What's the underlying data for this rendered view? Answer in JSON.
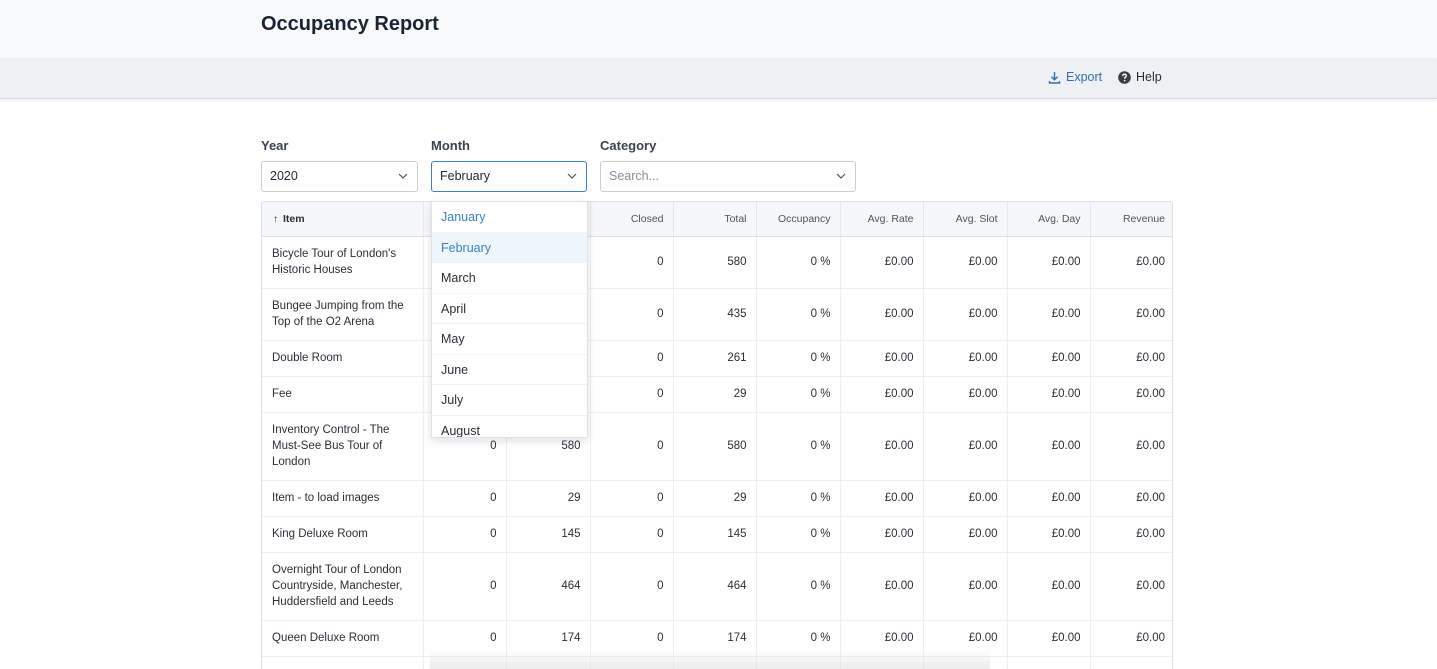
{
  "page": {
    "title": "Occupancy Report"
  },
  "toolbar": {
    "export_label": "Export",
    "help_label": "Help"
  },
  "filters": {
    "year": {
      "label": "Year",
      "value": "2020"
    },
    "month": {
      "label": "Month",
      "value": "February"
    },
    "category": {
      "label": "Category",
      "placeholder": "Search..."
    }
  },
  "month_dropdown": {
    "options": [
      "January",
      "February",
      "March",
      "April",
      "May",
      "June",
      "July",
      "August"
    ],
    "highlighted": "January",
    "selected": "February"
  },
  "table": {
    "headers": [
      "Item",
      "",
      "",
      "Closed",
      "Total",
      "Occupancy",
      "Avg. Rate",
      "Avg. Slot",
      "Avg. Day",
      "Revenue"
    ],
    "rows": [
      {
        "item": "Bicycle Tour of London's Historic Houses",
        "c1": "",
        "c2": "",
        "closed": "0",
        "total": "580",
        "occupancy": "0 %",
        "avg_rate": "£0.00",
        "avg_slot": "£0.00",
        "avg_day": "£0.00",
        "revenue": "£0.00"
      },
      {
        "item": "Bungee Jumping from the Top of the O2 Arena",
        "c1": "",
        "c2": "",
        "closed": "0",
        "total": "435",
        "occupancy": "0 %",
        "avg_rate": "£0.00",
        "avg_slot": "£0.00",
        "avg_day": "£0.00",
        "revenue": "£0.00"
      },
      {
        "item": "Double Room",
        "c1": "",
        "c2": "",
        "closed": "0",
        "total": "261",
        "occupancy": "0 %",
        "avg_rate": "£0.00",
        "avg_slot": "£0.00",
        "avg_day": "£0.00",
        "revenue": "£0.00"
      },
      {
        "item": "Fee",
        "c1": "",
        "c2": "",
        "closed": "0",
        "total": "29",
        "occupancy": "0 %",
        "avg_rate": "£0.00",
        "avg_slot": "£0.00",
        "avg_day": "£0.00",
        "revenue": "£0.00"
      },
      {
        "item": "Inventory Control - The Must-See Bus Tour of London",
        "c1": "0",
        "c2": "580",
        "closed": "0",
        "total": "580",
        "occupancy": "0 %",
        "avg_rate": "£0.00",
        "avg_slot": "£0.00",
        "avg_day": "£0.00",
        "revenue": "£0.00"
      },
      {
        "item": "Item - to load images",
        "c1": "0",
        "c2": "29",
        "closed": "0",
        "total": "29",
        "occupancy": "0 %",
        "avg_rate": "£0.00",
        "avg_slot": "£0.00",
        "avg_day": "£0.00",
        "revenue": "£0.00"
      },
      {
        "item": "King Deluxe Room",
        "c1": "0",
        "c2": "145",
        "closed": "0",
        "total": "145",
        "occupancy": "0 %",
        "avg_rate": "£0.00",
        "avg_slot": "£0.00",
        "avg_day": "£0.00",
        "revenue": "£0.00"
      },
      {
        "item": "Overnight Tour of London Countryside, Manchester, Huddersfield and Leeds",
        "c1": "0",
        "c2": "464",
        "closed": "0",
        "total": "464",
        "occupancy": "0 %",
        "avg_rate": "£0.00",
        "avg_slot": "£0.00",
        "avg_day": "£0.00",
        "revenue": "£0.00"
      },
      {
        "item": "Queen Deluxe Room",
        "c1": "0",
        "c2": "174",
        "closed": "0",
        "total": "174",
        "occupancy": "0 %",
        "avg_rate": "£0.00",
        "avg_slot": "£0.00",
        "avg_day": "£0.00",
        "revenue": "£0.00"
      },
      {
        "item": "",
        "c1": "",
        "c2": "",
        "closed": "",
        "total": "",
        "occupancy": "",
        "avg_rate": "",
        "avg_slot": "",
        "avg_day": "",
        "revenue": ""
      }
    ]
  },
  "icons": {
    "export": "download-icon",
    "help": "question-circle-icon",
    "chevron": "chevron-down-icon",
    "sort": "sort-up-arrow-icon"
  },
  "colors": {
    "accent": "#3b82c4",
    "link": "#2f6db5",
    "header_bg": "#f8f9fa",
    "toolbar_bg": "#eef0f3"
  }
}
